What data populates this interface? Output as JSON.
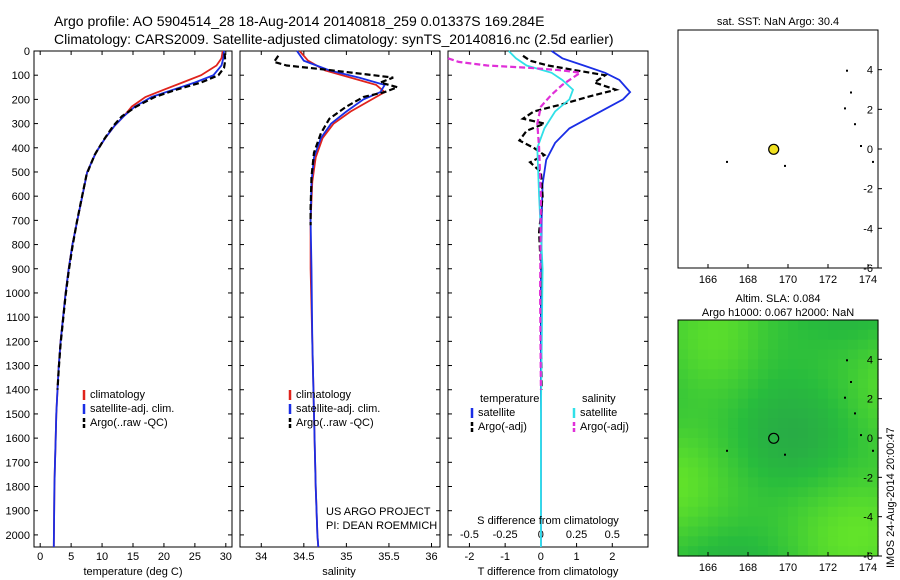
{
  "header": {
    "line1": "Argo profile: AO 5904514_28 18-Aug-2014 20140818_259 0.01337S 169.284E",
    "line2": "Climatology: CARS2009. Satellite-adjusted climatology: synTS_20140816.nc (2.5d earlier)"
  },
  "colors": {
    "climatology": "#e0231c",
    "satellite": "#1a2ee6",
    "argo": "#000000",
    "cyan": "#30e0e8",
    "magenta": "#e030d8",
    "yellow": "#f0e020",
    "map_green": "#43d63a"
  },
  "chart_data": [
    {
      "type": "line",
      "id": "temperature-panel",
      "xlabel": "temperature (deg C)",
      "ylabel": "",
      "xlim": [
        -1,
        31
      ],
      "ylim": [
        2050,
        0
      ],
      "xticks": [
        0,
        5,
        10,
        15,
        20,
        25,
        30
      ],
      "yticks": [
        0,
        100,
        200,
        300,
        400,
        500,
        600,
        700,
        800,
        900,
        1000,
        1100,
        1200,
        1300,
        1400,
        1500,
        1600,
        1700,
        1800,
        1900,
        2000
      ],
      "legend": [
        "climatology",
        "satellite-adj. clim.",
        "Argo(..raw -QC)"
      ],
      "legend_placement": "lower-center",
      "series": [
        {
          "name": "climatology",
          "style": "solid",
          "color_key": "climatology",
          "x": [
            29.5,
            29.3,
            28.5,
            26,
            23,
            20,
            17,
            14.8,
            13.5,
            12,
            10.5,
            9,
            7.6,
            6.8,
            6,
            5.2,
            4.6,
            4.1,
            3.7,
            3.3,
            3,
            2.8,
            2.6,
            2.5,
            2.4,
            2.3,
            2.2
          ],
          "y": [
            0,
            30,
            60,
            100,
            130,
            160,
            190,
            230,
            270,
            310,
            360,
            420,
            500,
            600,
            700,
            800,
            900,
            1000,
            1100,
            1200,
            1300,
            1400,
            1500,
            1600,
            1700,
            1800,
            2050
          ]
        },
        {
          "name": "satellite-adj. clim.",
          "style": "solid",
          "color_key": "satellite",
          "x": [
            29.7,
            29.6,
            29.3,
            28,
            25,
            21.5,
            18,
            15.3,
            13.5,
            12,
            10.5,
            9,
            7.6,
            6.8,
            6,
            5.2,
            4.6,
            4.1,
            3.7,
            3.3,
            3,
            2.8,
            2.6,
            2.5,
            2.4,
            2.3,
            2.2
          ],
          "y": [
            0,
            30,
            60,
            100,
            130,
            160,
            190,
            230,
            270,
            310,
            360,
            420,
            500,
            600,
            700,
            800,
            900,
            1000,
            1100,
            1200,
            1300,
            1400,
            1500,
            1600,
            1700,
            1800,
            2050
          ]
        },
        {
          "name": "Argo(..raw -QC)",
          "style": "dashed",
          "color_key": "argo",
          "x": [
            29.8,
            29.9,
            29.7,
            28.8,
            26,
            22,
            18.5,
            15.5,
            13.2,
            11.8,
            10.2,
            8.8,
            7.5,
            6.7,
            5.9,
            5.2,
            4.6,
            4.1,
            3.7,
            3.3,
            3,
            2.8
          ],
          "y": [
            10,
            40,
            70,
            100,
            130,
            160,
            190,
            230,
            270,
            310,
            370,
            430,
            510,
            610,
            710,
            810,
            910,
            1010,
            1110,
            1210,
            1310,
            1400
          ]
        }
      ]
    },
    {
      "type": "line",
      "id": "salinity-panel",
      "xlabel": "salinity",
      "ylabel": "",
      "xlim": [
        33.75,
        36.1
      ],
      "ylim": [
        2050,
        0
      ],
      "xticks": [
        34,
        34.5,
        35,
        35.5,
        36
      ],
      "legend": [
        "climatology",
        "satellite-adj. clim.",
        "Argo(..raw -QC)"
      ],
      "legend_placement": "lower-center",
      "annotation": [
        "US ARGO PROJECT",
        "PI: DEAN ROEMMICH"
      ],
      "series": [
        {
          "name": "climatology",
          "style": "solid",
          "color_key": "climatology",
          "x": [
            34.45,
            34.55,
            34.75,
            35.05,
            35.35,
            35.45,
            35.3,
            35.05,
            34.85,
            34.72,
            34.64,
            34.6,
            34.58,
            34.58,
            34.6,
            34.62,
            34.64,
            34.66,
            34.67
          ],
          "y": [
            0,
            40,
            80,
            110,
            140,
            170,
            200,
            250,
            300,
            360,
            440,
            540,
            700,
            900,
            1200,
            1500,
            1800,
            2000,
            2050
          ]
        },
        {
          "name": "satellite-adj. clim.",
          "style": "solid",
          "color_key": "satellite",
          "x": [
            34.42,
            34.5,
            34.8,
            35.15,
            35.45,
            35.4,
            35.2,
            35.0,
            34.82,
            34.7,
            34.62,
            34.59,
            34.58,
            34.59,
            34.6,
            34.62,
            34.64,
            34.66,
            34.67
          ],
          "y": [
            0,
            40,
            80,
            110,
            140,
            170,
            200,
            250,
            300,
            360,
            440,
            540,
            700,
            900,
            1200,
            1500,
            1800,
            2000,
            2050
          ]
        },
        {
          "name": "Argo(..raw -QC)",
          "style": "dashed",
          "color_key": "argo",
          "x": [
            34.2,
            34.15,
            34.3,
            34.7,
            35.2,
            35.55,
            35.4,
            35.6,
            35.45,
            35.2,
            35.0,
            34.8,
            34.7,
            34.62,
            34.59,
            34.58,
            34.58
          ],
          "y": [
            20,
            45,
            60,
            75,
            95,
            110,
            130,
            150,
            170,
            190,
            230,
            280,
            340,
            420,
            520,
            650,
            720
          ]
        }
      ]
    },
    {
      "type": "line",
      "id": "difference-panel",
      "xlabel": "T difference from climatology",
      "xlabel2": "S difference from climatology",
      "xlim": [
        -2.6,
        3.0
      ],
      "ylim": [
        2050,
        0
      ],
      "xticks": [
        -2,
        -1,
        0,
        1,
        2
      ],
      "xticks2": [
        -0.5,
        -0.25,
        0,
        0.25,
        0.5
      ],
      "xtick2_labels": [
        "-0.5",
        "-0.25",
        "0",
        "0.25",
        "0.5"
      ],
      "legend_temperature_title": "temperature",
      "legend_salinity_title": "salinity",
      "legend_labels": [
        "satellite",
        "Argo(-adj)",
        "satellite",
        "Argo(-adj)"
      ],
      "legend_placement": "lower-center",
      "series": [
        {
          "name": "satellite",
          "quantity": "temperature",
          "style": "solid",
          "color_key": "satellite",
          "x": [
            0.3,
            0.6,
            1.2,
            1.8,
            2.2,
            2.5,
            2.3,
            1.8,
            1.3,
            0.8,
            0.4,
            0.15,
            0.05,
            0.02,
            0.0,
            0.0,
            0.0
          ],
          "y": [
            0,
            30,
            60,
            90,
            120,
            170,
            200,
            240,
            280,
            320,
            380,
            450,
            550,
            700,
            1000,
            1500,
            2050
          ]
        },
        {
          "name": "Argo(-adj)",
          "quantity": "temperature",
          "style": "dashed",
          "color_key": "argo",
          "x": [
            -0.5,
            -0.3,
            0.2,
            1.0,
            1.8,
            1.5,
            2.1,
            1.3,
            0.6,
            -0.2,
            -0.5,
            0.1,
            -0.4,
            -0.6,
            -0.2,
            0.1,
            -0.3,
            0.0,
            0.05,
            -0.05,
            0.0,
            0.02
          ],
          "y": [
            20,
            40,
            60,
            80,
            100,
            130,
            160,
            190,
            220,
            250,
            280,
            300,
            330,
            370,
            400,
            430,
            460,
            500,
            600,
            750,
            900,
            1400
          ]
        },
        {
          "name": "satellite",
          "quantity": "salinity",
          "style": "solid",
          "color_key": "cyan",
          "x": [
            -0.9,
            -0.7,
            -0.4,
            0.3,
            0.6,
            0.9,
            0.8,
            0.4,
            0.1,
            -0.1,
            -0.05,
            0.05,
            0.0,
            0.0
          ],
          "y": [
            0,
            30,
            60,
            90,
            120,
            160,
            200,
            250,
            320,
            400,
            600,
            900,
            1500,
            2050
          ]
        },
        {
          "name": "Argo(-adj)",
          "quantity": "salinity",
          "style": "dashed",
          "color_key": "magenta",
          "x": [
            -2.6,
            -2.3,
            -1.5,
            -0.3,
            0.6,
            1.1,
            0.9,
            0.6,
            0.3,
            0.0,
            -0.1,
            -0.05,
            0.0,
            -0.02,
            0.0
          ],
          "y": [
            30,
            45,
            60,
            70,
            80,
            90,
            110,
            140,
            180,
            230,
            300,
            400,
            600,
            1000,
            1400
          ]
        }
      ]
    },
    {
      "type": "scatter",
      "id": "sst-map",
      "title": "sat. SST: NaN Argo: 30.4",
      "xlim": [
        164.5,
        174.5
      ],
      "ylim": [
        -6,
        6
      ],
      "xticks": [
        166,
        168,
        170,
        172,
        174
      ],
      "yticks": [
        -6,
        -4,
        -2,
        0,
        2,
        4
      ],
      "marker": {
        "x": 169.284,
        "y": -0.01337,
        "fill_key": "yellow"
      }
    },
    {
      "type": "heatmap",
      "id": "sla-map",
      "title": "Altim. SLA: 0.084",
      "subtitle": "Argo h1000: 0.067 h2000: NaN",
      "xlim": [
        164.5,
        174.5
      ],
      "ylim": [
        -6,
        6
      ],
      "xticks": [
        166,
        168,
        170,
        172,
        174
      ],
      "yticks": [
        -6,
        -4,
        -2,
        0,
        2,
        4
      ],
      "marker": {
        "x": 169.284,
        "y": -0.01337
      }
    }
  ],
  "credit": "IMOS 24-Aug-2014 20:00:47"
}
